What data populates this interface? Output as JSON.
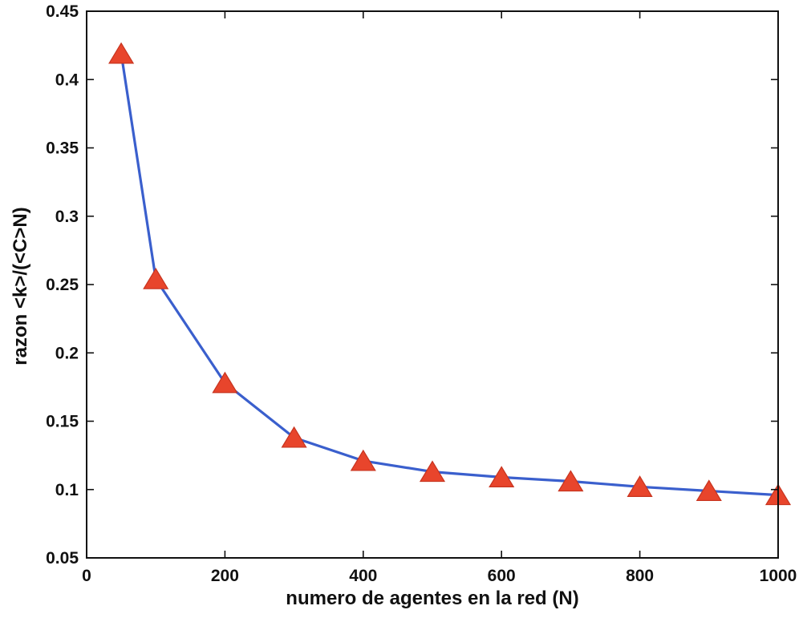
{
  "chart_data": {
    "type": "line",
    "title": "",
    "xlabel": "numero de agentes en la red (N)",
    "ylabel": "razon <k>/(<C>N)",
    "xlim": [
      0,
      1000
    ],
    "ylim": [
      0.05,
      0.45
    ],
    "xticks": [
      0,
      200,
      400,
      600,
      800,
      1000
    ],
    "yticks": [
      0.05,
      0.1,
      0.15,
      0.2,
      0.25,
      0.3,
      0.35,
      0.4,
      0.45
    ],
    "grid": false,
    "legend": "none",
    "series": [
      {
        "x": [
          50,
          100,
          200,
          300,
          400,
          500,
          600,
          700,
          800,
          900,
          1000
        ],
        "y": [
          0.419,
          0.254,
          0.178,
          0.138,
          0.121,
          0.113,
          0.109,
          0.106,
          0.102,
          0.099,
          0.096
        ],
        "line_color": "#3a5fcd",
        "marker": "triangle",
        "marker_color": "#e8452c"
      }
    ]
  }
}
